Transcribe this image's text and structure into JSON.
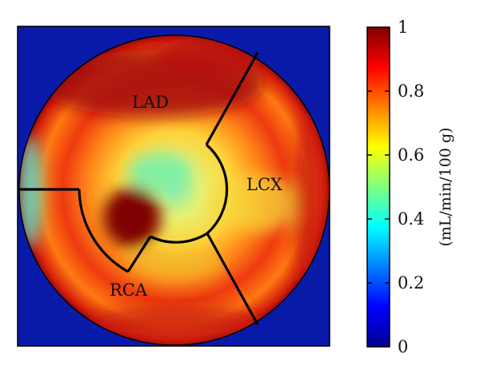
{
  "chart_data": {
    "type": "heatmap",
    "subtype": "polar-bullseye-perfusion-map",
    "regions": [
      {
        "name": "LAD",
        "label": "LAD",
        "value": 0.88
      },
      {
        "name": "LCX",
        "label": "LCX",
        "value": 0.82
      },
      {
        "name": "RCA",
        "label": "RCA",
        "value": 0.86
      }
    ],
    "center_value": 0.6,
    "background_value": 0.0,
    "colorbar": {
      "label": "(mL/min/100 g)",
      "range": [
        0,
        1
      ],
      "ticks": [
        0,
        0.2,
        0.4,
        0.6,
        0.8,
        1
      ],
      "tick_labels": [
        "0",
        "0.2",
        "0.4",
        "0.6",
        "0.8",
        "1"
      ],
      "colormap": "jet"
    },
    "colors": {
      "background": "#0a1aa8",
      "jet_stops": [
        "#00008f",
        "#0000ff",
        "#00ffff",
        "#ffff00",
        "#ff8000",
        "#ff0000",
        "#800000"
      ]
    },
    "grid": false,
    "legend": "none"
  }
}
